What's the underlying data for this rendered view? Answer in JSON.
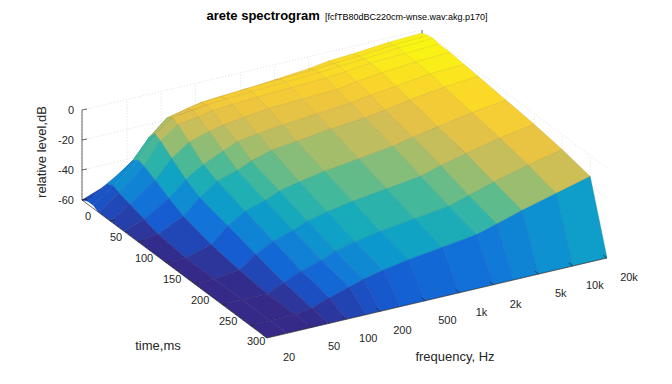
{
  "chart_data": {
    "type": "surface",
    "title": "arete spectrogram",
    "subtitle": "[fcfTB80dBC220cm-wnse.wav:akg.p170]",
    "x_label": "frequency, Hz",
    "y_label": "time,ms",
    "z_label": "relative level,dB",
    "log": "x",
    "grid": true,
    "xlim": [
      20,
      20000
    ],
    "xticks": [
      20,
      50,
      100,
      200,
      500,
      {
        "value": 1000,
        "label": "1k"
      },
      {
        "value": 2000,
        "label": "2k"
      },
      {
        "value": 5000,
        "label": "5k"
      },
      {
        "value": 10000,
        "label": "10k"
      },
      {
        "value": 20000,
        "label": "20k"
      }
    ],
    "ylim": [
      0,
      330
    ],
    "yticks": [
      0,
      50,
      100,
      150,
      200,
      250,
      300
    ],
    "zlim": [
      -60,
      0
    ],
    "zticks": [
      -60,
      -40,
      -20,
      0
    ],
    "x": [
      20,
      30,
      50,
      70,
      100,
      150,
      200,
      300,
      500,
      1000,
      2000,
      3000,
      5000,
      10000,
      20000
    ],
    "y": [
      0,
      10,
      20,
      30,
      50,
      75,
      100,
      150,
      200,
      250,
      300,
      330
    ],
    "z": [
      [
        -60,
        -55,
        -45,
        -35,
        -25,
        -20,
        -18,
        -15,
        -12,
        -10,
        -8,
        -6,
        -5,
        -3,
        -2
      ],
      [
        -58,
        -50,
        -38,
        -25,
        -15,
        -12,
        -10,
        -9,
        -8,
        -7,
        -6,
        -5,
        -4,
        -2,
        -1
      ],
      [
        -58,
        -48,
        -35,
        -20,
        -12,
        -10,
        -9,
        -8,
        -7,
        -6,
        -5,
        -4,
        -3,
        -1,
        0
      ],
      [
        -60,
        -50,
        -36,
        -22,
        -14,
        -12,
        -10,
        -9,
        -8,
        -7,
        -6,
        -5,
        -3,
        -2,
        -1
      ],
      [
        -60,
        -52,
        -40,
        -28,
        -20,
        -16,
        -14,
        -12,
        -10,
        -9,
        -8,
        -6,
        -4,
        -2,
        -1
      ],
      [
        -60,
        -55,
        -45,
        -35,
        -28,
        -22,
        -18,
        -16,
        -14,
        -12,
        -10,
        -8,
        -6,
        -3,
        -2
      ],
      [
        -60,
        -58,
        -50,
        -40,
        -32,
        -28,
        -24,
        -20,
        -18,
        -15,
        -13,
        -11,
        -8,
        -5,
        -3
      ],
      [
        -60,
        -60,
        -55,
        -45,
        -38,
        -34,
        -30,
        -27,
        -24,
        -21,
        -18,
        -15,
        -12,
        -8,
        -5
      ],
      [
        -60,
        -60,
        -58,
        -50,
        -44,
        -40,
        -36,
        -33,
        -30,
        -27,
        -24,
        -20,
        -16,
        -11,
        -7
      ],
      [
        -60,
        -60,
        -60,
        -55,
        -50,
        -46,
        -42,
        -39,
        -36,
        -33,
        -30,
        -26,
        -21,
        -15,
        -10
      ],
      [
        -60,
        -60,
        -60,
        -58,
        -54,
        -50,
        -47,
        -44,
        -41,
        -38,
        -35,
        -31,
        -26,
        -20,
        -14
      ],
      [
        -60,
        -60,
        -60,
        -60,
        -60,
        -60,
        -60,
        -60,
        -60,
        -60,
        -60,
        -60,
        -60,
        -60,
        -60
      ]
    ]
  }
}
